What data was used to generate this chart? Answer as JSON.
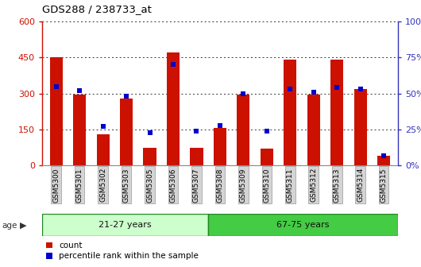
{
  "title": "GDS288 / 238733_at",
  "samples": [
    "GSM5300",
    "GSM5301",
    "GSM5302",
    "GSM5303",
    "GSM5305",
    "GSM5306",
    "GSM5307",
    "GSM5308",
    "GSM5309",
    "GSM5310",
    "GSM5311",
    "GSM5312",
    "GSM5313",
    "GSM5314",
    "GSM5315"
  ],
  "counts": [
    450,
    295,
    130,
    280,
    75,
    470,
    75,
    155,
    295,
    70,
    440,
    295,
    440,
    320,
    40
  ],
  "percentiles": [
    55,
    52,
    27,
    48,
    23,
    70,
    24,
    28,
    50,
    24,
    53,
    51,
    54,
    53,
    7
  ],
  "groups": [
    {
      "label": "21-27 years",
      "start": 0,
      "end": 7
    },
    {
      "label": "67-75 years",
      "start": 7,
      "end": 15
    }
  ],
  "bar_color": "#cc1100",
  "dot_color": "#0000cc",
  "ylim_left": [
    0,
    600
  ],
  "ylim_right": [
    0,
    100
  ],
  "yticks_left": [
    0,
    150,
    300,
    450,
    600
  ],
  "yticks_right": [
    0,
    25,
    50,
    75,
    100
  ],
  "group_colors": [
    "#ccffcc",
    "#44cc44"
  ],
  "left_axis_color": "#cc1100",
  "right_axis_color": "#3333bb",
  "legend_items": [
    "count",
    "percentile rank within the sample"
  ],
  "age_band_border": "#228822"
}
